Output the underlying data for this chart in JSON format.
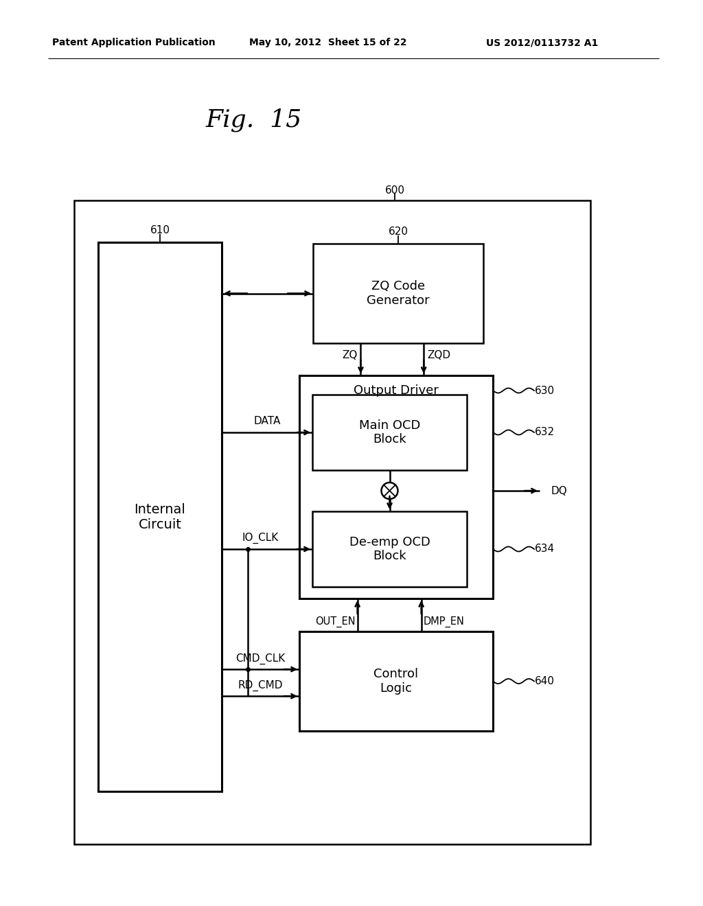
{
  "bg_color": "#ffffff",
  "title": "Fig.  15",
  "header_left": "Patent Application Publication",
  "header_mid": "May 10, 2012  Sheet 15 of 22",
  "header_right": "US 2012/0113732 A1",
  "label_600": "600",
  "label_610": "610",
  "label_620": "620",
  "label_630": "630",
  "label_632": "632",
  "label_634": "634",
  "label_640": "640",
  "internal_circuit_label": "Internal\nCircuit",
  "zq_code_label": "ZQ Code\nGenerator",
  "output_driver_label": "Output Driver",
  "main_ocd_label": "Main OCD\nBlock",
  "de_emp_label": "De-emp OCD\nBlock",
  "control_logic_label": "Control\nLogic",
  "signal_DATA": "DATA",
  "signal_IO_CLK": "IO_CLK",
  "signal_ZQ": "ZQ",
  "signal_ZQD": "ZQD",
  "signal_DQ": "DQ",
  "signal_OUT_EN": "OUT_EN",
  "signal_DMP_EN": "DMP_EN",
  "signal_CMD_CLK": "CMD_CLK",
  "signal_RD_CMD": "RD_CMD"
}
